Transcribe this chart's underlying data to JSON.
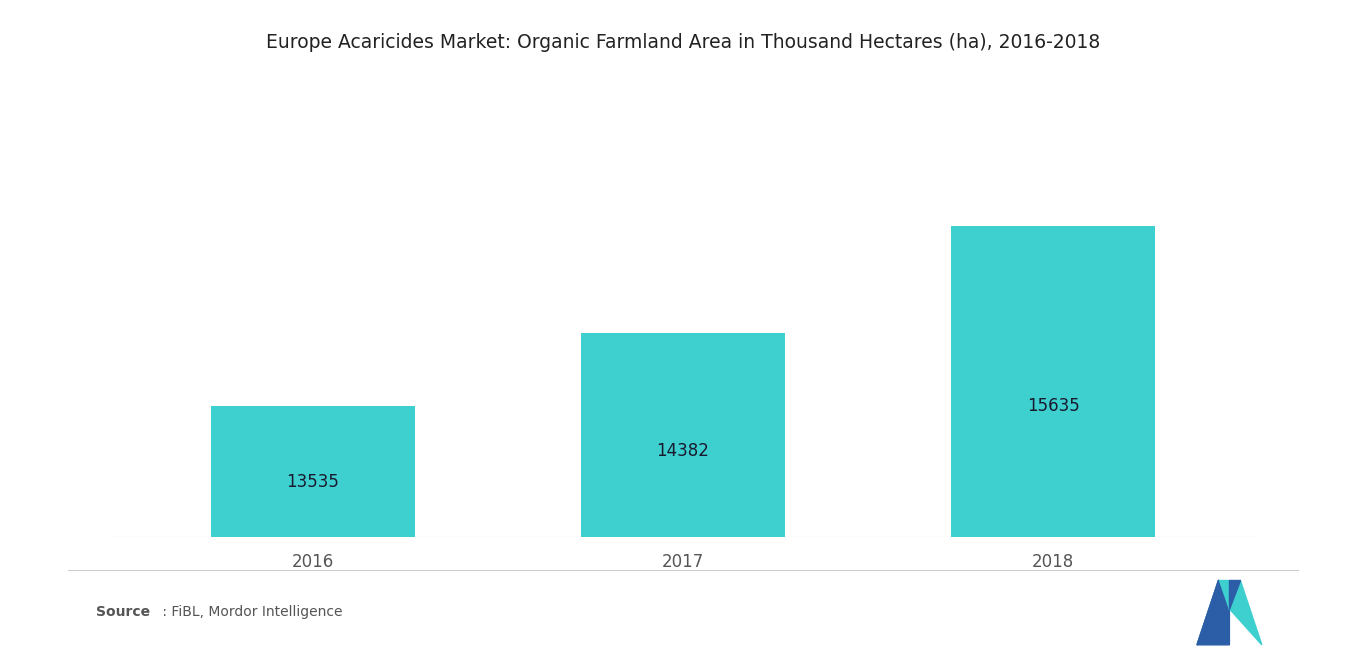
{
  "title": "Europe Acaricides Market: Organic Farmland Area in Thousand Hectares (ha), 2016-2018",
  "categories": [
    "2016",
    "2017",
    "2018"
  ],
  "values": [
    13535,
    14382,
    15635
  ],
  "bar_color": "#3ECFCF",
  "label_color": "#1a1a2e",
  "background_color": "#ffffff",
  "title_fontsize": 13.5,
  "label_fontsize": 12,
  "tick_fontsize": 12,
  "source_bold": "Source",
  "source_regular": " : FiBL, Mordor Intelligence",
  "ymin": 12000,
  "ymax": 17200,
  "bar_width": 0.55,
  "xlim_left": -0.55,
  "xlim_right": 2.55
}
